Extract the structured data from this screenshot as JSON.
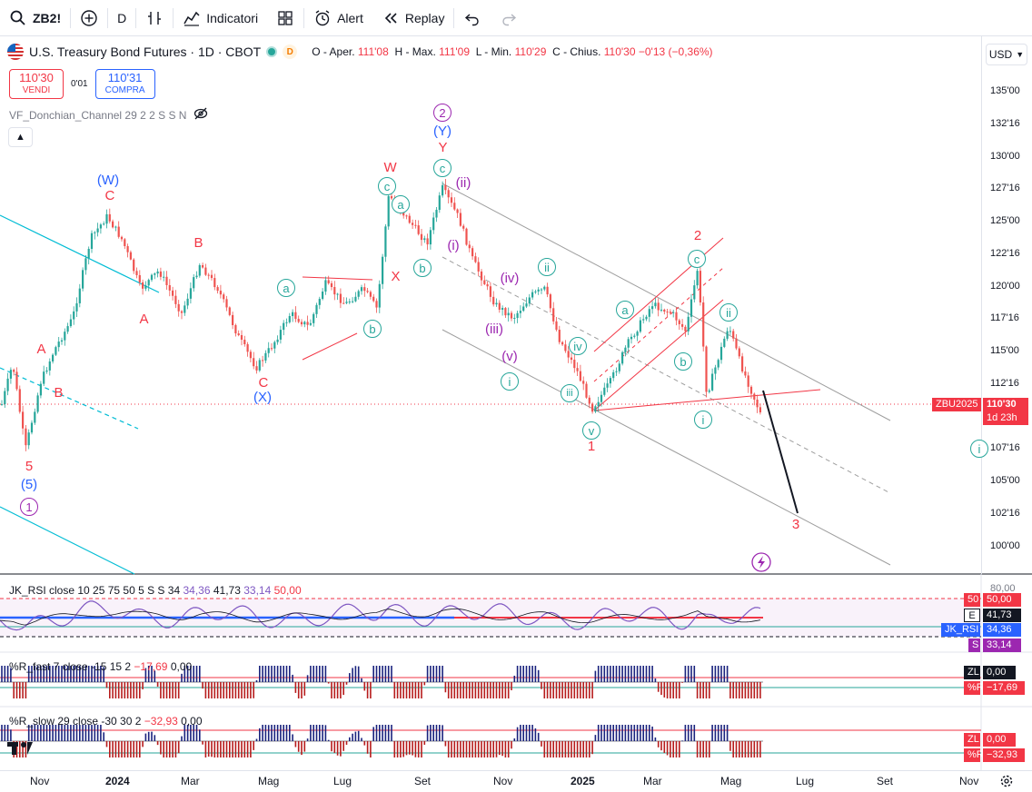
{
  "toolbar": {
    "symbol": "ZB2!",
    "interval": "D",
    "indicators": "Indicatori",
    "alert": "Alert",
    "replay": "Replay"
  },
  "legend": {
    "title": "U.S. Treasury Bond Futures · 1D · CBOT",
    "badge": "D",
    "o_label": "O - Aper.",
    "o_val": "111'08",
    "h_label": "H - Max.",
    "h_val": "111'09",
    "l_label": "L - Min.",
    "l_val": "110'29",
    "c_label": "C - Chius.",
    "c_val": "110'30",
    "chg": "−0'13 (−0,36%)"
  },
  "trade": {
    "sell_price": "110'30",
    "sell_label": "VENDI",
    "spread": "0'01",
    "buy_price": "110'31",
    "buy_label": "COMPRA"
  },
  "indicator_title": "VF_Donchian_Channel 29 2 2 S S N",
  "currency": "USD",
  "price_ticks": [
    "135'00",
    "132'16",
    "130'00",
    "127'16",
    "125'00",
    "122'16",
    "120'00",
    "117'16",
    "115'00",
    "112'16",
    "107'16",
    "105'00",
    "102'16",
    "100'00"
  ],
  "price_tag": {
    "symbol": "ZBU2025",
    "price": "110'30",
    "countdown": "1d 23h"
  },
  "waves": {
    "w5": "5",
    "w5p": "(5)",
    "w1c": "1",
    "wA1": "A",
    "wB1": "B",
    "wWp": "(W)",
    "wC1": "C",
    "wA2": "A",
    "wB2": "B",
    "wC2": "C",
    "wXp": "(X)",
    "wa1": "a",
    "wb1": "b",
    "wW": "W",
    "wX": "X",
    "wa2": "a",
    "wb2": "b",
    "wc2": "c",
    "w2c": "2",
    "wYp": "(Y)",
    "wY": "Y",
    "wc3": "c",
    "wii1": "(ii)",
    "wi1": "(i)",
    "wiv1": "(iv)",
    "wiii1": "(iii)",
    "wv1": "(v)",
    "wi2": "i",
    "wii2": "ii",
    "wiv2": "iv",
    "wiii2": "iii",
    "wv2": "v",
    "w1r": "1",
    "wa3": "a",
    "wb3": "b",
    "wc4": "c",
    "w2r": "2",
    "wii3": "ii",
    "wi3": "i",
    "w3r": "3",
    "wi4": "i"
  },
  "rsi": {
    "title": "JK_RSI close 10 25 75 50 5 S S 34",
    "v1": "34,36",
    "v2": "41,73",
    "v3": "33,14",
    "v4": "50,00",
    "tag50": "50",
    "tag50v": "50,00",
    "tagE": "E",
    "tagEv": "41,73",
    "tagRsi": "JK_RSI",
    "tagRsiv": "34,36",
    "tagS": "S",
    "tagSv": "33,14",
    "top_tick": "80,00"
  },
  "rfast": {
    "title": "%R_fast 7 close -15 15 2",
    "v1": "−17,69",
    "v2": "0,00",
    "tagZL": "ZL",
    "tagZLv": "0,00",
    "tagR": "%R",
    "tagRv": "−17,69"
  },
  "rslow": {
    "title": "%R_slow 29 close -30 30 2",
    "v1": "−32,93",
    "v2": "0,00",
    "tagZL": "ZL",
    "tagZLv": "0,00",
    "tagR": "%R",
    "tagRv": "−32,93"
  },
  "time_axis": [
    "Nov",
    "2024",
    "Mar",
    "Mag",
    "Lug",
    "Set",
    "Nov",
    "2025",
    "Mar",
    "Mag",
    "Lug",
    "Set",
    "Nov"
  ],
  "colors": {
    "up": "#26a69a",
    "down": "#ef5350",
    "red": "#f23645",
    "blue": "#2962ff",
    "purple": "#9c27b0",
    "teal": "#00bcd4"
  }
}
